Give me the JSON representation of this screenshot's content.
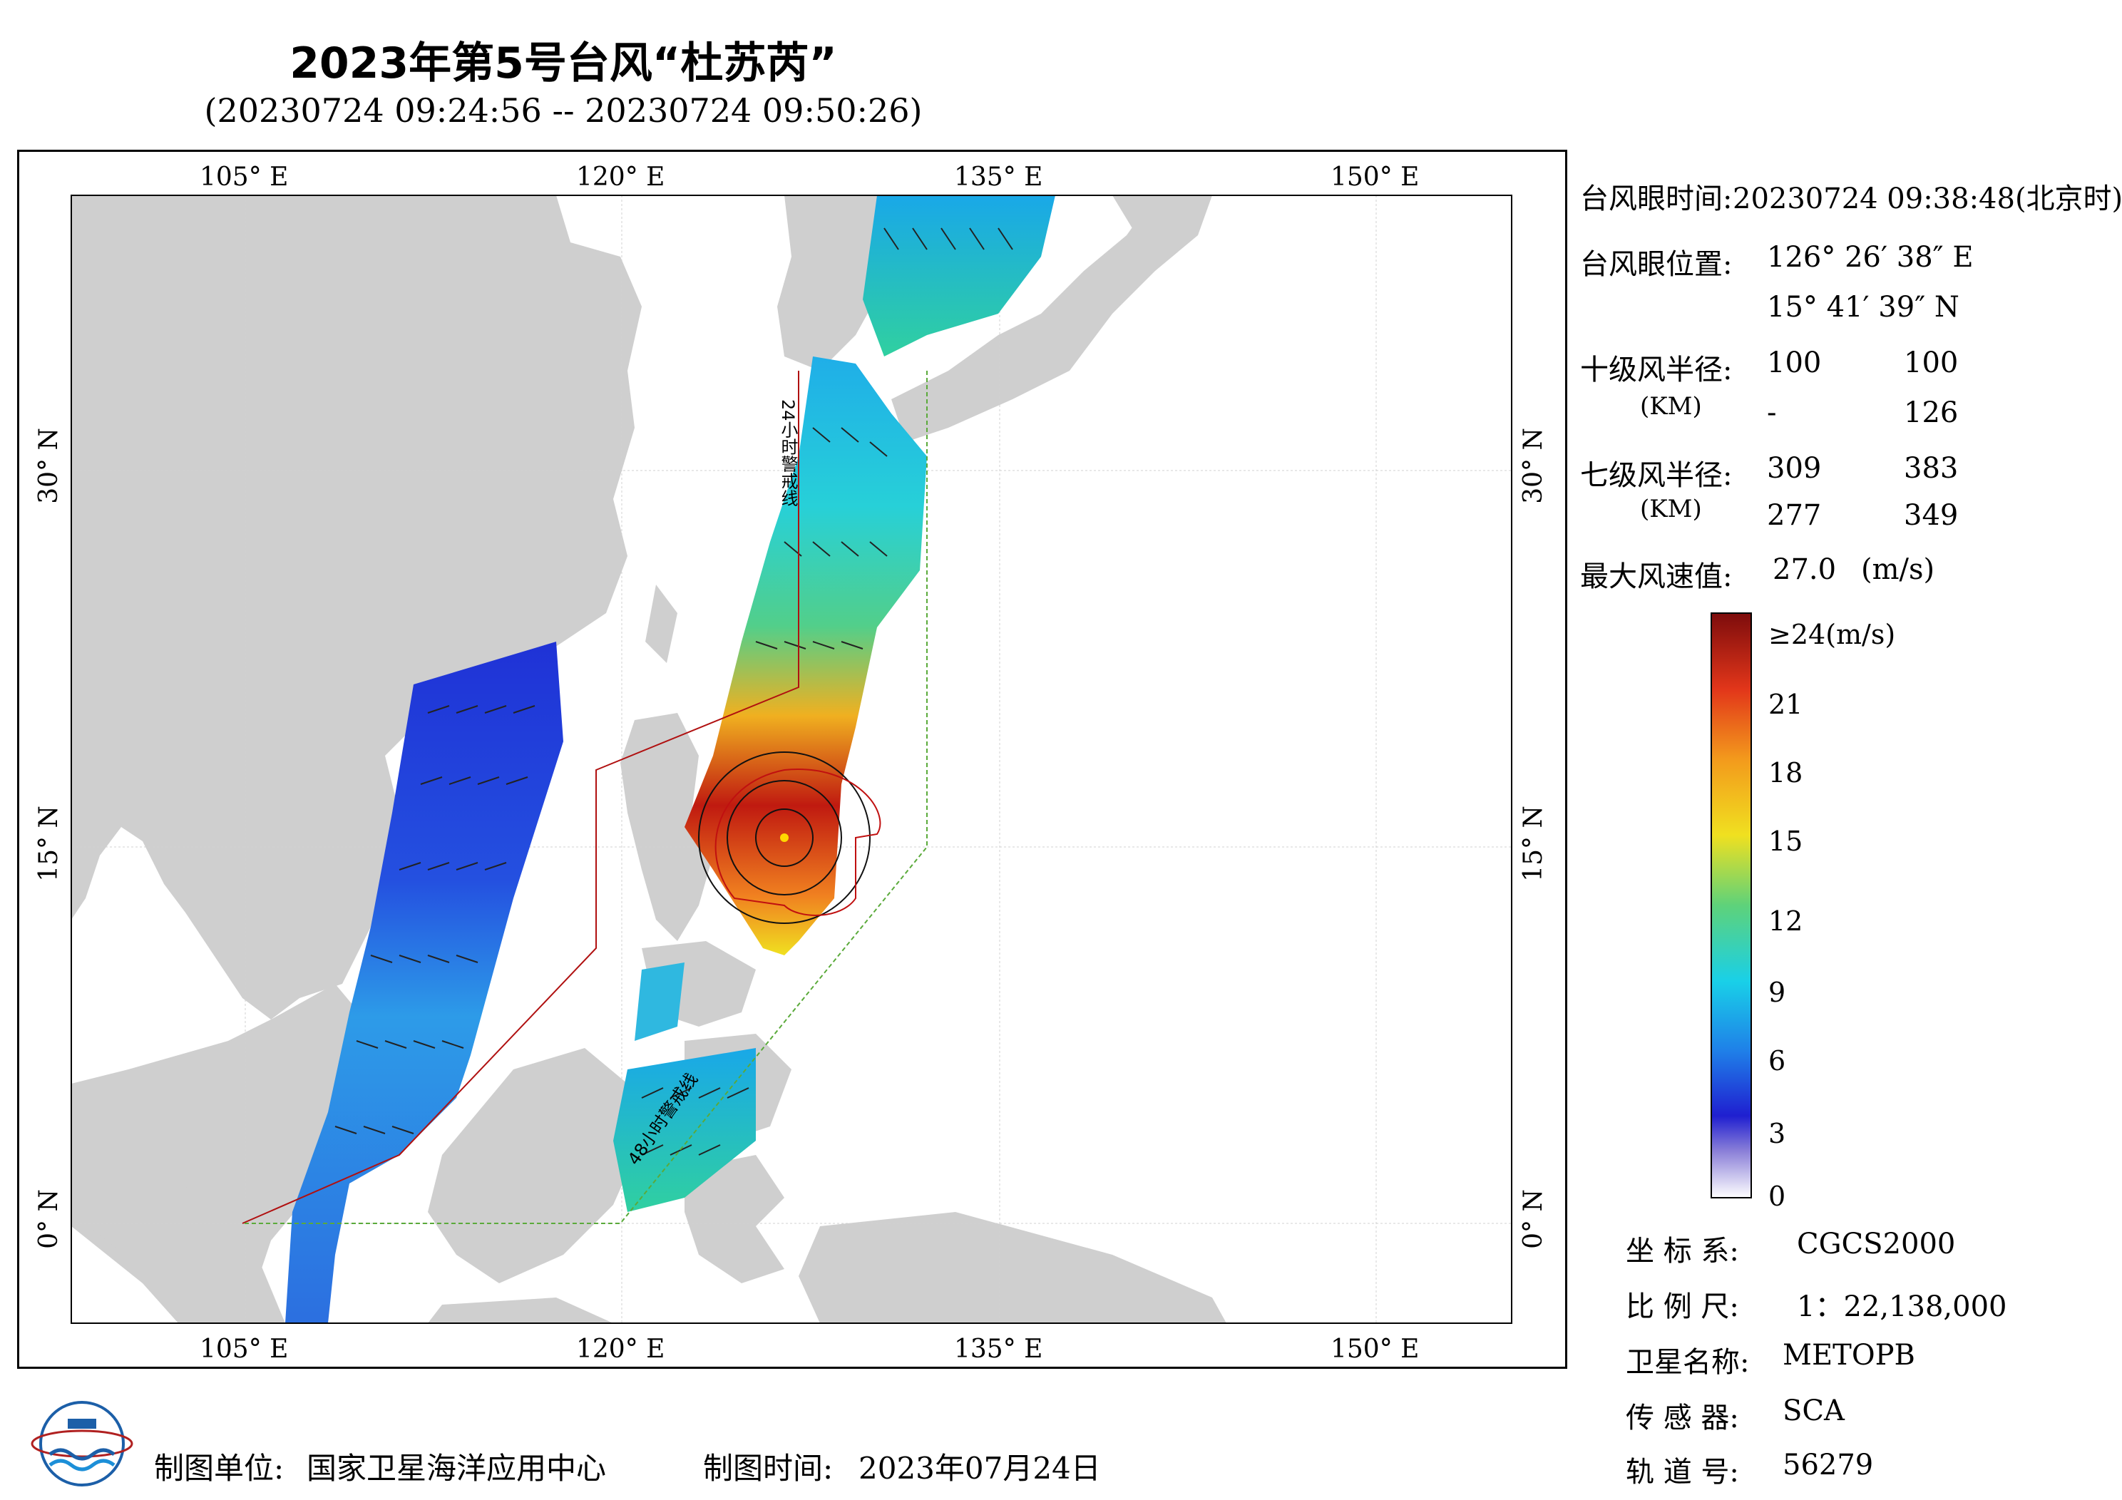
{
  "header": {
    "title": "2023年第5号台风“杜苏芮”",
    "time_range": "(20230724 09:24:56 -- 20230724 09:50:26)"
  },
  "map": {
    "lon_ticks_top": [
      "105° E",
      "120° E",
      "135° E",
      "150° E"
    ],
    "lon_ticks_bottom": [
      "105° E",
      "120° E",
      "135° E",
      "150° E"
    ],
    "lat_ticks_left": [
      "30° N",
      "15° N",
      "0° N"
    ],
    "lat_ticks_right": [
      "30° N",
      "15° N",
      "0° N"
    ],
    "warn_24h_label": "24小时警戒线",
    "warn_48h_label": "48小时警戒线",
    "colors": {
      "land": "#cfcfcf",
      "sea": "#ffffff",
      "warn24": "#b01010",
      "warn48": "#5aaa3a"
    }
  },
  "info": {
    "eye_time_label": "台风眼时间:",
    "eye_time_value": "20230724 09:38:48(北京时)",
    "eye_pos_label": "台风眼位置:",
    "eye_lon": "126° 26′ 38″ E",
    "eye_lat": "15° 41′ 39″ N",
    "r10_label": "十级风半径:",
    "km_label": "(KM)",
    "r10": [
      "100",
      "100",
      "-",
      "126"
    ],
    "r7_label": "七级风半径:",
    "r7": [
      "309",
      "383",
      "277",
      "349"
    ],
    "max_label": "最大风速值:",
    "max_value": "27.0",
    "max_unit": "(m/s)"
  },
  "legend": {
    "ticks": [
      "≥24(m/s)",
      "21",
      "18",
      "15",
      "12",
      "9",
      "6",
      "3",
      "0"
    ]
  },
  "meta": {
    "crs_label": "坐 标 系:",
    "crs_value": "CGCS2000",
    "scale_label": "比 例 尺:",
    "scale_value": "1：22,138,000",
    "satellite_label": "卫星名称:",
    "satellite_value": "METOPB",
    "sensor_label": "传 感 器:",
    "sensor_value": "SCA",
    "orbit_label": "轨 道 号:",
    "orbit_value": "56279"
  },
  "footer": {
    "org_label": "制图单位:",
    "org_value": "国家卫星海洋应用中心",
    "date_label": "制图时间:",
    "date_value": "2023年07月24日"
  }
}
